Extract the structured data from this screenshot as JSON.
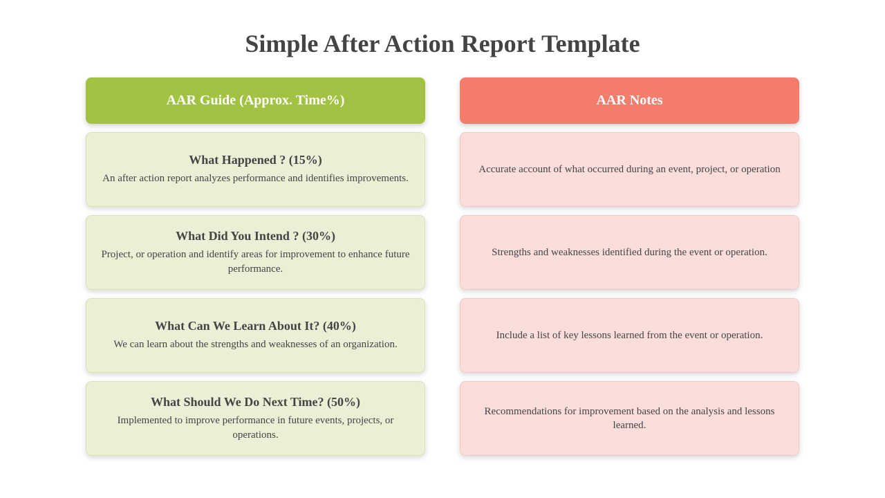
{
  "title": "Simple After Action Report Template",
  "colors": {
    "guide_header_bg": "#a1c243",
    "notes_header_bg": "#f47c6c",
    "guide_card_bg": "#eaf0d5",
    "guide_card_border": "#d7e3b2",
    "notes_card_bg": "#fbdedc",
    "notes_card_border": "#f4c7c3",
    "title_color": "#444444",
    "text_color": "#444444",
    "page_bg": "#ffffff"
  },
  "typography": {
    "title_fontsize": 36,
    "header_fontsize": 20,
    "card_title_fontsize": 18,
    "card_body_fontsize": 15,
    "font_family": "Georgia"
  },
  "layout": {
    "columns": 2,
    "rows_per_column": 4,
    "card_gap": 12,
    "column_gap": 50,
    "border_radius": 8
  },
  "guide": {
    "header": "AAR Guide (Approx. Time%)",
    "items": [
      {
        "title": "What Happened ? (15%)",
        "body": "An after action report analyzes performance and identifies improvements."
      },
      {
        "title": "What Did You Intend ? (30%)",
        "body": "Project, or operation and identify areas for improvement to enhance future performance."
      },
      {
        "title": "What Can We Learn About It? (40%)",
        "body": "We can learn about the strengths and weaknesses of an organization."
      },
      {
        "title": "What Should We Do Next Time? (50%)",
        "body": "Implemented to improve performance in future events, projects, or operations."
      }
    ]
  },
  "notes": {
    "header": "AAR Notes",
    "items": [
      {
        "body": "Accurate account of what occurred during an event, project, or operation"
      },
      {
        "body": "Strengths and weaknesses identified during the event or operation."
      },
      {
        "body": "Include a list of key lessons learned from the event or operation."
      },
      {
        "body": "Recommendations for improvement based on the analysis and lessons learned."
      }
    ]
  }
}
